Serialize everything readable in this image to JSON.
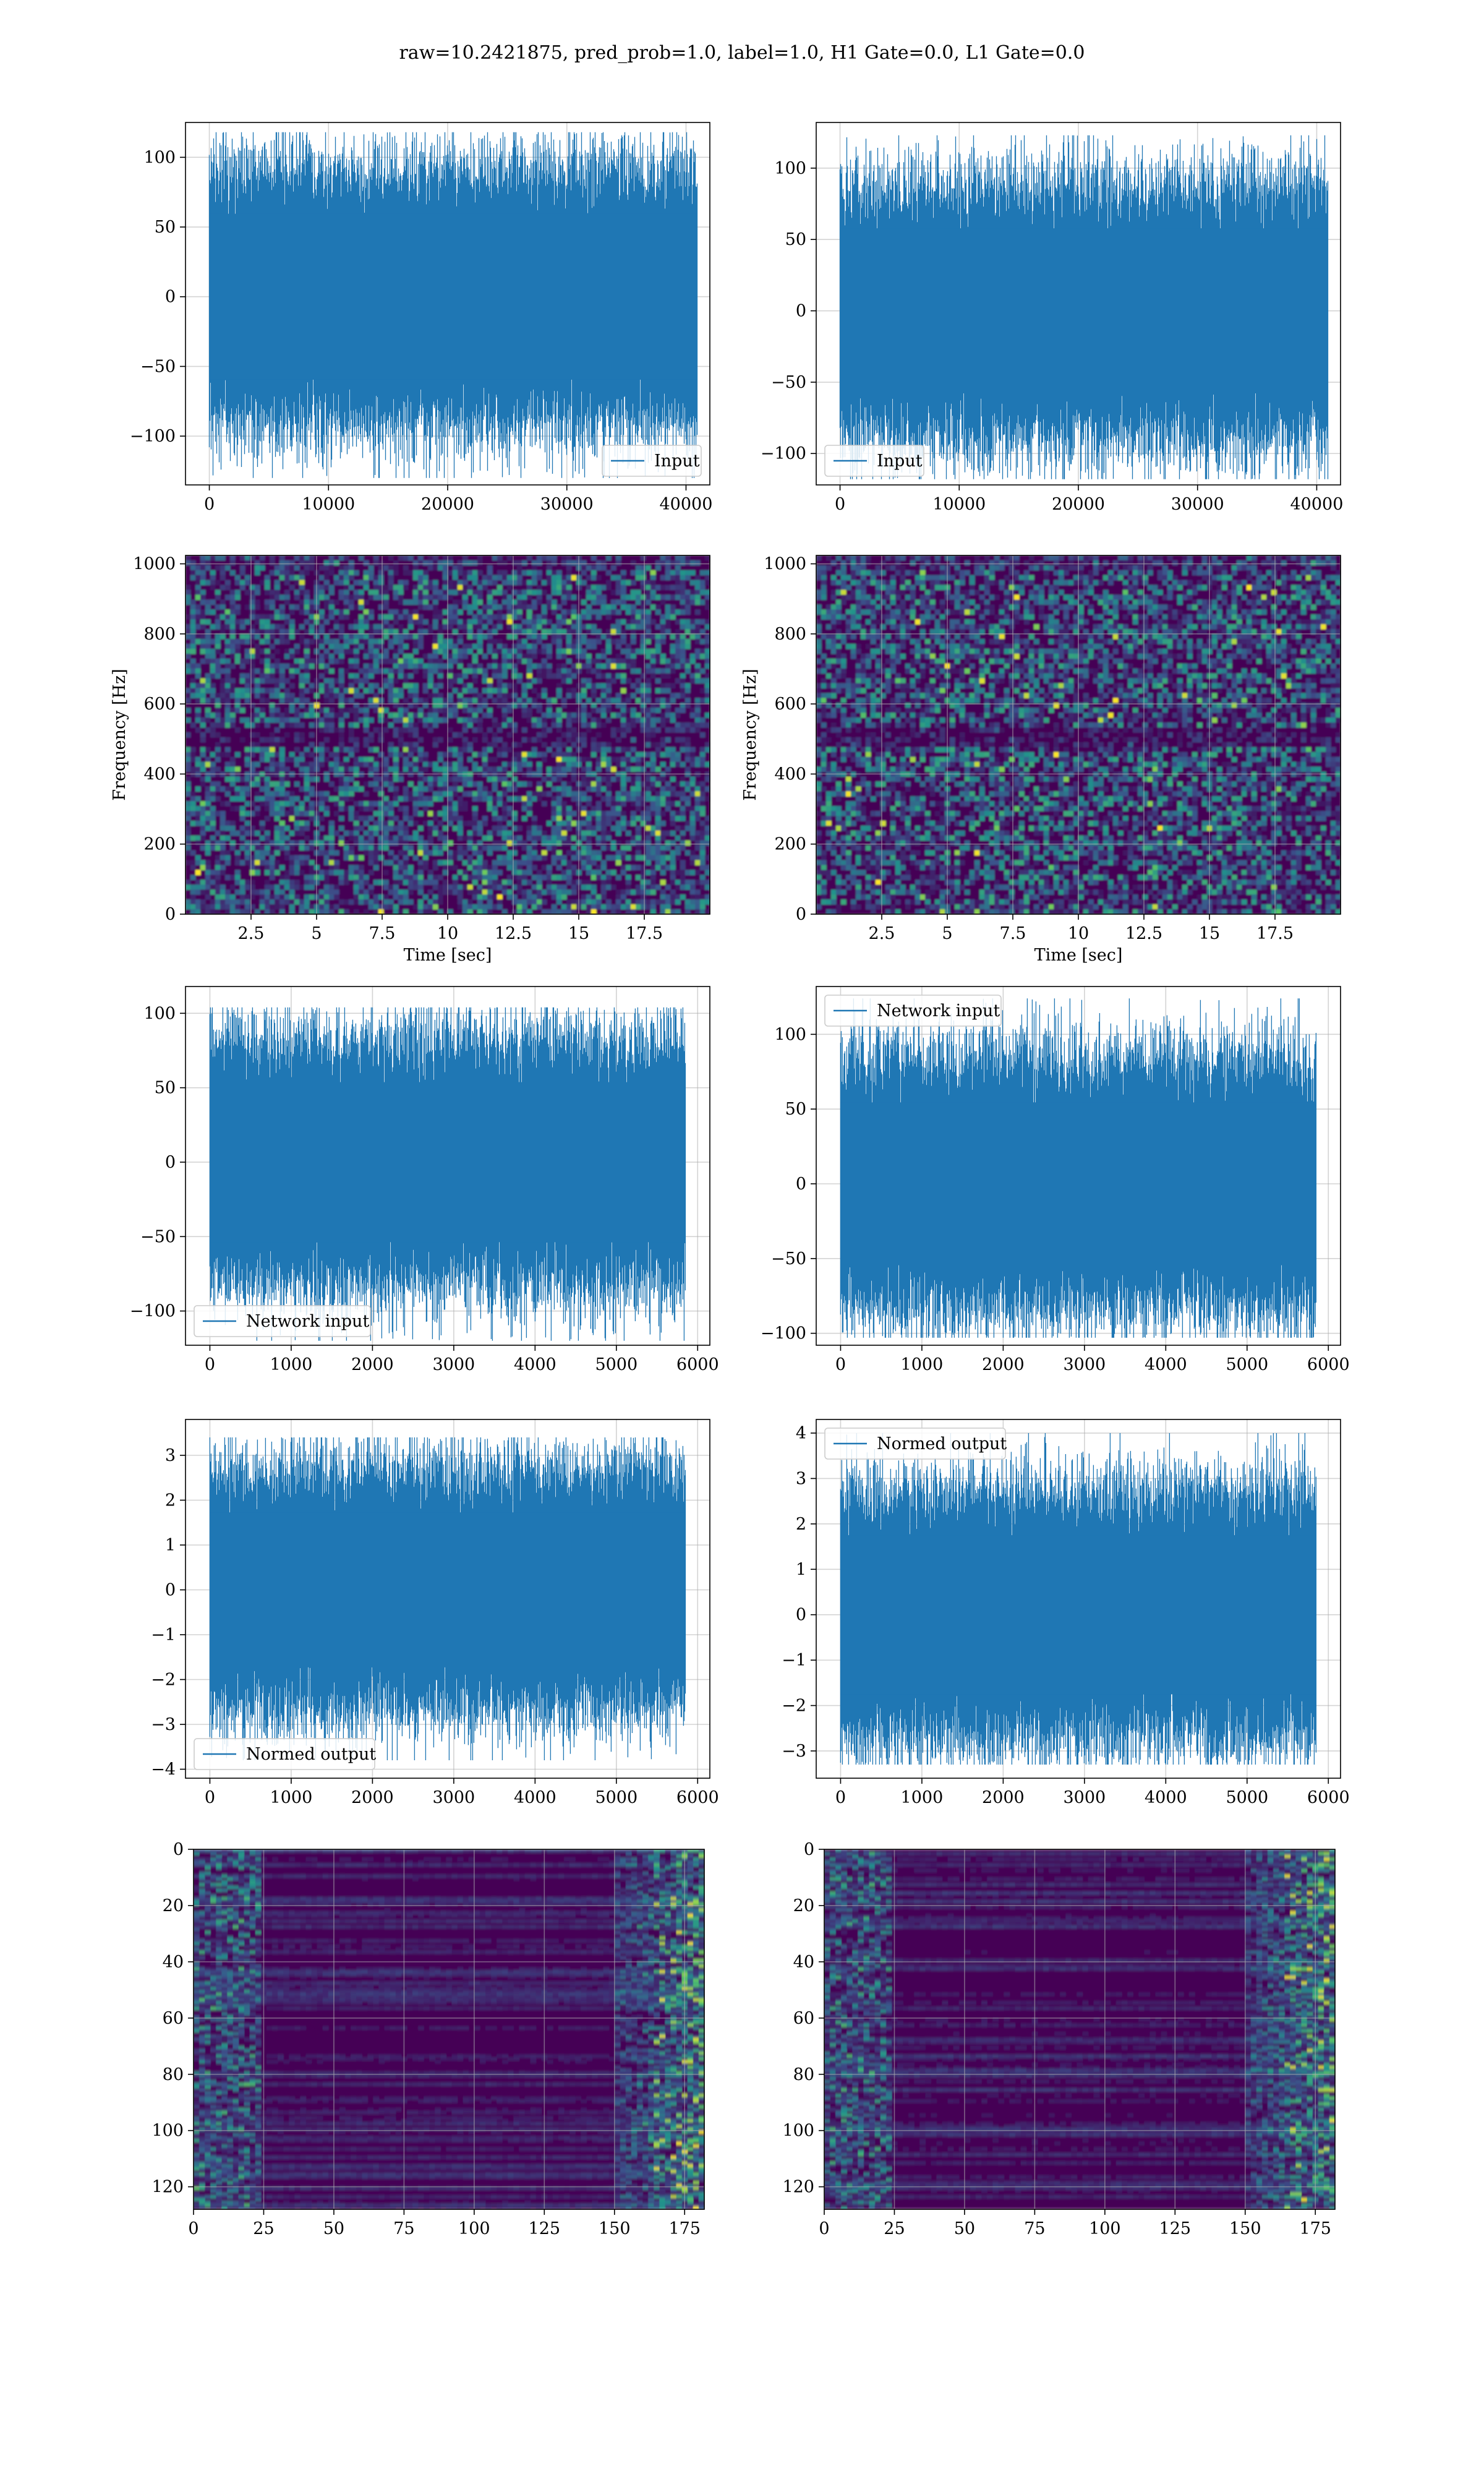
{
  "title": "raw=10.2421875, pred_prob=1.0, label=1.0, H1 Gate=0.0, L1 Gate=0.0",
  "colors": {
    "line": "#1f77b4",
    "grid": "#b0b0b0",
    "viridis_dark": "#440154",
    "viridis_light": "#fde725"
  },
  "chart_data": [
    {
      "id": "input-left",
      "type": "line",
      "series": [
        {
          "name": "Input",
          "description": "dense noise trace",
          "values_range": [
            -130,
            118
          ]
        }
      ],
      "xlim": [
        -2000,
        42000
      ],
      "ylim": [
        -135,
        125
      ],
      "xticks": [
        0,
        10000,
        20000,
        30000,
        40000
      ],
      "yticks": [
        -100,
        -50,
        0,
        50,
        100
      ],
      "xlabel": "",
      "ylabel": "",
      "legend": "lower right",
      "grid": true,
      "n_points": 40960
    },
    {
      "id": "input-right",
      "type": "line",
      "series": [
        {
          "name": "Input",
          "values_range": [
            -118,
            123
          ]
        }
      ],
      "xlim": [
        -2000,
        42000
      ],
      "ylim": [
        -122,
        132
      ],
      "xticks": [
        0,
        10000,
        20000,
        30000,
        40000
      ],
      "yticks": [
        -100,
        -50,
        0,
        50,
        100
      ],
      "xlabel": "",
      "ylabel": "",
      "legend": "lower left",
      "grid": true,
      "n_points": 40960
    },
    {
      "id": "spec-left",
      "type": "heatmap",
      "colormap": "viridis",
      "xlim": [
        0,
        20
      ],
      "ylim": [
        0,
        1024
      ],
      "xticks": [
        2.5,
        5.0,
        7.5,
        10.0,
        12.5,
        15.0,
        17.5
      ],
      "yticks": [
        0,
        200,
        400,
        600,
        800,
        1000
      ],
      "xlabel": "Time [sec]",
      "ylabel": "Frequency [Hz]",
      "grid": true
    },
    {
      "id": "spec-right",
      "type": "heatmap",
      "colormap": "viridis",
      "xlim": [
        0,
        20
      ],
      "ylim": [
        0,
        1024
      ],
      "xticks": [
        2.5,
        5.0,
        7.5,
        10.0,
        12.5,
        15.0,
        17.5
      ],
      "yticks": [
        0,
        200,
        400,
        600,
        800,
        1000
      ],
      "xlabel": "Time [sec]",
      "ylabel": "Frequency [Hz]",
      "grid": true
    },
    {
      "id": "net-left",
      "type": "line",
      "series": [
        {
          "name": "Network input",
          "values_range": [
            -120,
            104
          ]
        }
      ],
      "xlim": [
        -300,
        6150
      ],
      "ylim": [
        -123,
        118
      ],
      "xticks": [
        0,
        1000,
        2000,
        3000,
        4000,
        5000,
        6000
      ],
      "yticks": [
        -100,
        -50,
        0,
        50,
        100
      ],
      "xlabel": "",
      "ylabel": "",
      "legend": "lower left",
      "grid": true,
      "n_points": 5850
    },
    {
      "id": "net-right",
      "type": "line",
      "series": [
        {
          "name": "Network input",
          "values_range": [
            -103,
            124
          ]
        }
      ],
      "xlim": [
        -300,
        6150
      ],
      "ylim": [
        -108,
        132
      ],
      "xticks": [
        0,
        1000,
        2000,
        3000,
        4000,
        5000,
        6000
      ],
      "yticks": [
        -100,
        -50,
        0,
        50,
        100
      ],
      "xlabel": "",
      "ylabel": "",
      "legend": "upper left",
      "grid": true,
      "n_points": 5850
    },
    {
      "id": "norm-left",
      "type": "line",
      "series": [
        {
          "name": "Normed output",
          "values_range": [
            -3.8,
            3.4
          ]
        }
      ],
      "xlim": [
        -300,
        6150
      ],
      "ylim": [
        -4.2,
        3.8
      ],
      "xticks": [
        0,
        1000,
        2000,
        3000,
        4000,
        5000,
        6000
      ],
      "yticks": [
        -4,
        -3,
        -2,
        -1,
        0,
        1,
        2,
        3
      ],
      "xlabel": "",
      "ylabel": "",
      "legend": "lower left",
      "grid": true,
      "n_points": 5850
    },
    {
      "id": "norm-right",
      "type": "line",
      "series": [
        {
          "name": "Normed output",
          "values_range": [
            -3.3,
            4.0
          ]
        }
      ],
      "xlim": [
        -300,
        6150
      ],
      "ylim": [
        -3.6,
        4.3
      ],
      "xticks": [
        0,
        1000,
        2000,
        3000,
        4000,
        5000,
        6000
      ],
      "yticks": [
        -3,
        -2,
        -1,
        0,
        1,
        2,
        3,
        4
      ],
      "xlabel": "",
      "ylabel": "",
      "legend": "upper left",
      "grid": true,
      "n_points": 5850
    },
    {
      "id": "feat-left",
      "type": "heatmap",
      "colormap": "viridis",
      "xlim": [
        0,
        182
      ],
      "ylim": [
        128,
        0
      ],
      "xticks": [
        0,
        25,
        50,
        75,
        100,
        125,
        150,
        175
      ],
      "yticks": [
        0,
        20,
        40,
        60,
        80,
        100,
        120
      ],
      "xlabel": "",
      "ylabel": "",
      "grid": true,
      "rows": 128
    },
    {
      "id": "feat-right",
      "type": "heatmap",
      "colormap": "viridis",
      "xlim": [
        0,
        182
      ],
      "ylim": [
        128,
        0
      ],
      "xticks": [
        0,
        25,
        50,
        75,
        100,
        125,
        150,
        175
      ],
      "yticks": [
        0,
        20,
        40,
        60,
        80,
        100,
        120
      ],
      "xlabel": "",
      "ylabel": "",
      "grid": true,
      "rows": 128
    }
  ]
}
